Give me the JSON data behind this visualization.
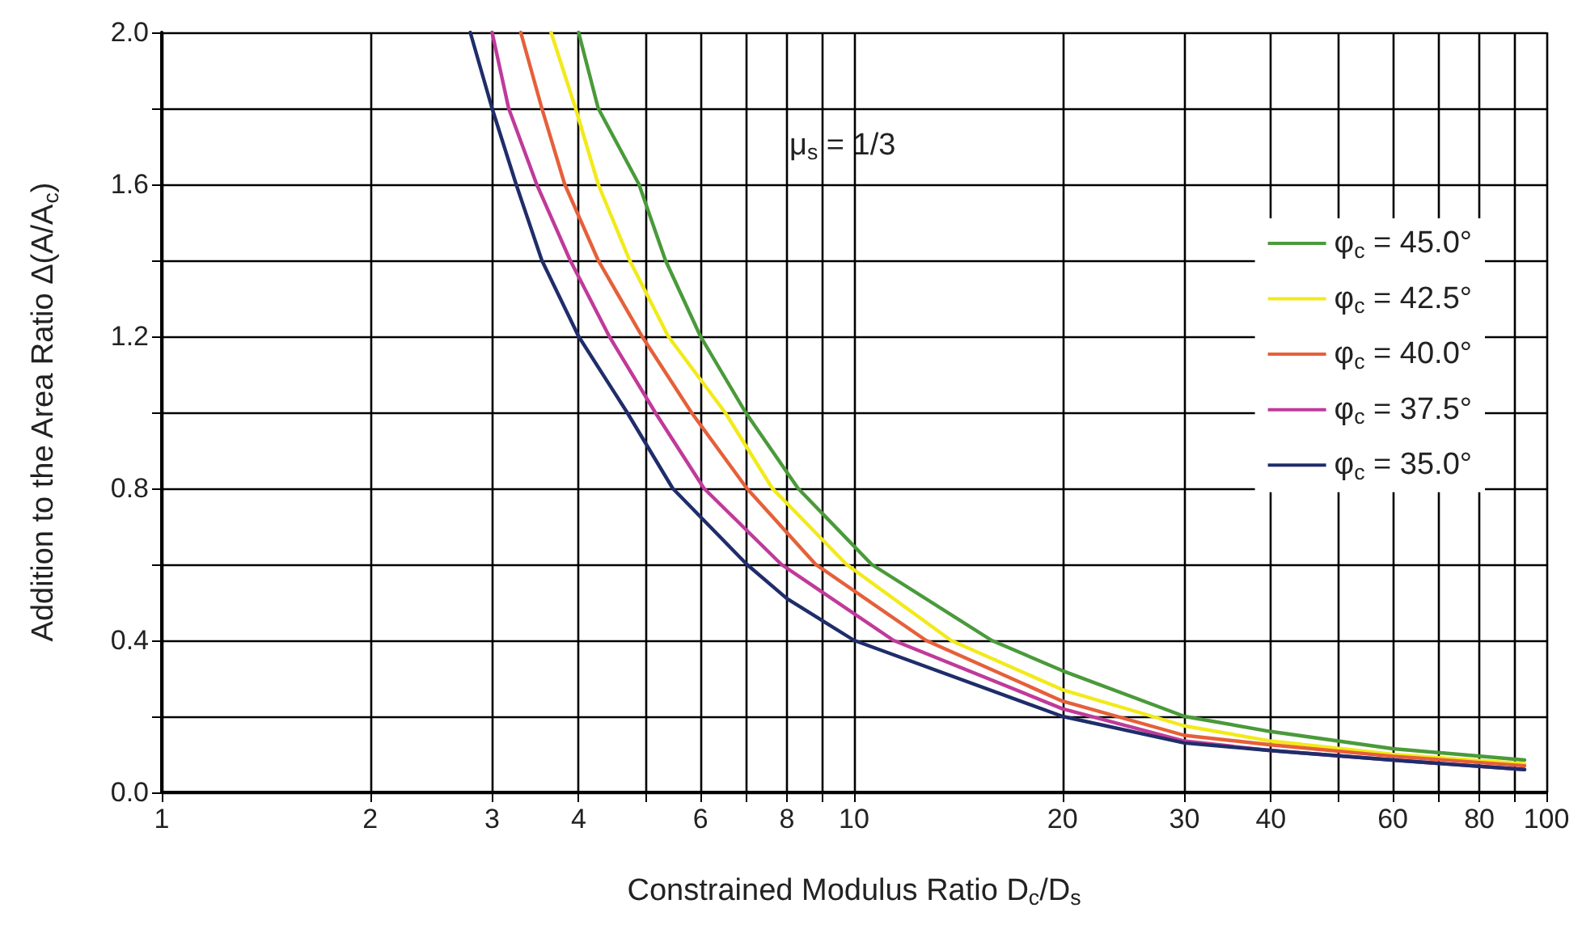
{
  "chart_data": {
    "type": "line",
    "xlabel": "Constrained Modulus Ratio D$_{c}$/D$_{s}$",
    "ylabel": "Addition to the Area Ratio Δ(A/A$_{c}$)",
    "annotations": [
      "μ$_{s}$ = 1/3"
    ],
    "log": "x",
    "grid": true,
    "legend": "right",
    "marker": "none",
    "line_style": "solid",
    "xlim": [
      1,
      100
    ],
    "xticks": [
      1,
      2,
      3,
      4,
      {
        "value": 5,
        "label": null
      },
      6,
      {
        "value": 7,
        "label": null
      },
      8,
      {
        "value": 9,
        "label": null
      },
      10,
      20,
      30,
      40,
      {
        "value": 50,
        "label": null
      },
      60,
      {
        "value": 70,
        "label": null
      },
      80,
      {
        "value": 90,
        "label": null
      },
      100
    ],
    "ylim": [
      0,
      2
    ],
    "yticks": [
      {
        "value": 0,
        "label": "0.0"
      },
      {
        "value": 0.2,
        "label": null
      },
      {
        "value": 0.4,
        "label": "0.4"
      },
      {
        "value": 0.6,
        "label": null
      },
      {
        "value": 0.8,
        "label": "0.8"
      },
      {
        "value": 1.0,
        "label": null
      },
      {
        "value": 1.2,
        "label": "1.2"
      },
      {
        "value": 1.4,
        "label": null
      },
      {
        "value": 1.6,
        "label": "1.6"
      },
      {
        "value": 1.8,
        "label": null
      },
      {
        "value": 2.0,
        "label": "2.0"
      }
    ],
    "series": [
      {
        "name": "φ$_{c}$ = 45.0°",
        "color": "#4a9a3a",
        "x": [
          4.0,
          4.27,
          4.89,
          5.34,
          6.0,
          6.97,
          8.3,
          10.6,
          15.8,
          20,
          30,
          40,
          60,
          93
        ],
        "values": [
          2.0,
          1.8,
          1.6,
          1.4,
          1.2,
          1.0,
          0.8,
          0.6,
          0.4,
          0.32,
          0.2,
          0.16,
          0.115,
          0.085
        ]
      },
      {
        "name": "φ$_{c}$ = 42.5°",
        "color": "#f2ea1a",
        "x": [
          3.65,
          3.96,
          4.27,
          4.74,
          5.39,
          6.51,
          7.62,
          9.75,
          13.8,
          20,
          30,
          40,
          60,
          93
        ],
        "values": [
          2.0,
          1.8,
          1.6,
          1.4,
          1.2,
          1.0,
          0.8,
          0.6,
          0.4,
          0.27,
          0.175,
          0.135,
          0.1,
          0.075
        ]
      },
      {
        "name": "φ$_{c}$ = 40.0°",
        "color": "#e5603a",
        "x": [
          3.3,
          3.54,
          3.82,
          4.27,
          4.94,
          5.82,
          7.0,
          8.8,
          12.7,
          20,
          30,
          40,
          60,
          93
        ],
        "values": [
          2.0,
          1.8,
          1.6,
          1.4,
          1.2,
          1.0,
          0.8,
          0.6,
          0.4,
          0.24,
          0.15,
          0.125,
          0.095,
          0.07
        ]
      },
      {
        "name": "φ$_{c}$ = 37.5°",
        "color": "#c03a9a",
        "x": [
          3.0,
          3.17,
          3.48,
          3.89,
          4.43,
          5.16,
          6.07,
          7.85,
          11.4,
          20,
          30,
          40,
          60,
          93
        ],
        "values": [
          2.0,
          1.8,
          1.6,
          1.4,
          1.2,
          1.0,
          0.8,
          0.6,
          0.4,
          0.22,
          0.135,
          0.11,
          0.085,
          0.06
        ]
      },
      {
        "name": "φ$_{c}$ = 35.0°",
        "color": "#1f2d6a",
        "x": [
          2.79,
          3.0,
          3.25,
          3.54,
          4.0,
          4.7,
          5.47,
          7.0,
          8.0,
          10,
          20,
          30,
          40,
          60,
          93
        ],
        "values": [
          2.0,
          1.8,
          1.6,
          1.4,
          1.2,
          1.0,
          0.8,
          0.6,
          0.51,
          0.4,
          0.2,
          0.13,
          0.11,
          0.085,
          0.06
        ]
      }
    ]
  }
}
